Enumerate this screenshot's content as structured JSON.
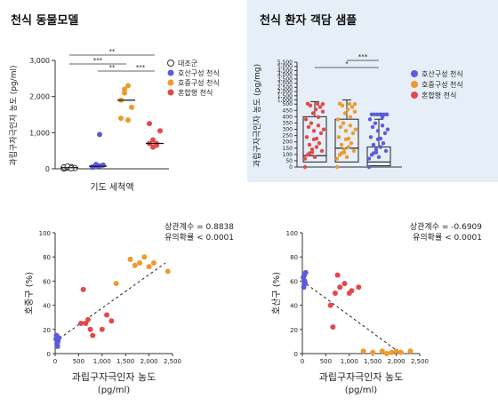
{
  "panels": {
    "animal_title": "천식 동물모델",
    "patient_title": "천식 환자 객담 샘플"
  },
  "chart_data": [
    {
      "id": "animal",
      "type": "scatter",
      "title": "천식 동물모델",
      "xlabel": "기도 세척액",
      "ylabel": "과립구자극인자 농도 (pg/ml)",
      "ylim": [
        0,
        3000
      ],
      "yticks": [
        "0",
        "1,000",
        "2,000",
        "3,000"
      ],
      "significance": [
        "**",
        "***",
        "**",
        "***"
      ],
      "legend": [
        "대조군",
        "호산구성 천식",
        "호중구성 천식",
        "혼합형 천식"
      ],
      "colors": [
        "#ffffff",
        "#5b5bdc",
        "#ee9a2c",
        "#e24a4a"
      ],
      "series": [
        {
          "name": "대조군",
          "values": [
            10,
            30,
            50,
            20,
            40,
            60,
            15
          ],
          "mean": 30
        },
        {
          "name": "호산구성 천식",
          "values": [
            40,
            60,
            80,
            100,
            50,
            120,
            950
          ],
          "mean": 70
        },
        {
          "name": "호중구성 천식",
          "values": [
            1900,
            2100,
            2300,
            1700,
            1400,
            2200,
            1350
          ],
          "mean": 1900
        },
        {
          "name": "혼합형 천식",
          "values": [
            700,
            800,
            650,
            1050,
            1250,
            600,
            700
          ],
          "mean": 700
        }
      ]
    },
    {
      "id": "patient",
      "type": "box",
      "title": "천식 환자 객담 샘플",
      "ylabel": "과립구자극인자 농도 (pg/mg)",
      "ylim": [
        0,
        5500
      ],
      "yticks": [
        "0",
        "50",
        "100",
        "150",
        "200",
        "250",
        "300",
        "350",
        "400",
        "450",
        "500",
        "1,000",
        "1,500",
        "2,000",
        "2,500",
        "3,000",
        "3,500",
        "4,000",
        "4,500",
        "5,000",
        "5,500"
      ],
      "significance": [
        "*",
        "***"
      ],
      "legend": [
        "호산구성 천식",
        "호중구성 천식",
        "혼합형 천식"
      ],
      "colors": [
        "#5b5bdc",
        "#ee9a2c",
        "#e24a4a"
      ],
      "boxes": [
        {
          "name": "혼합형 천식",
          "q1": 40,
          "median": 90,
          "q3": 400,
          "whisker_high": 800
        },
        {
          "name": "호중구성 천식",
          "q1": 40,
          "median": 150,
          "q3": 380,
          "whisker_high": 1000
        },
        {
          "name": "호산구성 천식",
          "q1": 10,
          "median": 40,
          "q3": 160,
          "whisker_high": 380
        }
      ]
    },
    {
      "id": "corr-neutrophil",
      "type": "scatter",
      "xlabel": "과립구자극인자 농도",
      "xunit": "(pg/ml)",
      "ylabel": "호중구 (%)",
      "xlim": [
        0,
        2500
      ],
      "ylim": [
        0,
        100
      ],
      "xticks": [
        "0",
        "500",
        "1,000",
        "1,500",
        "2,000",
        "2,500"
      ],
      "yticks": [
        "0",
        "20",
        "40",
        "60",
        "80",
        "100"
      ],
      "stat1": "상관계수 = 0.8838",
      "stat2": "유의확률 < 0.0001",
      "trend": [
        [
          0,
          10
        ],
        [
          2350,
          75
        ]
      ],
      "points": [
        {
          "x": 20,
          "y": 12,
          "g": 0
        },
        {
          "x": 40,
          "y": 8,
          "g": 0
        },
        {
          "x": 30,
          "y": 15,
          "g": 0
        },
        {
          "x": 60,
          "y": 10,
          "g": 0
        },
        {
          "x": 50,
          "y": 6,
          "g": 0
        },
        {
          "x": 80,
          "y": 13,
          "g": 0
        },
        {
          "x": 550,
          "y": 25,
          "g": 2
        },
        {
          "x": 600,
          "y": 53,
          "g": 2
        },
        {
          "x": 700,
          "y": 28,
          "g": 2
        },
        {
          "x": 750,
          "y": 20,
          "g": 2
        },
        {
          "x": 800,
          "y": 15,
          "g": 2
        },
        {
          "x": 650,
          "y": 25,
          "g": 2
        },
        {
          "x": 1100,
          "y": 32,
          "g": 2
        },
        {
          "x": 1200,
          "y": 27,
          "g": 2
        },
        {
          "x": 1000,
          "y": 20,
          "g": 2
        },
        {
          "x": 1300,
          "y": 58,
          "g": 1
        },
        {
          "x": 1600,
          "y": 78,
          "g": 1
        },
        {
          "x": 1700,
          "y": 73,
          "g": 1
        },
        {
          "x": 1800,
          "y": 75,
          "g": 1
        },
        {
          "x": 1900,
          "y": 80,
          "g": 1
        },
        {
          "x": 2000,
          "y": 72,
          "g": 1
        },
        {
          "x": 2100,
          "y": 75,
          "g": 1
        },
        {
          "x": 2400,
          "y": 68,
          "g": 1
        }
      ]
    },
    {
      "id": "corr-eosinophil",
      "type": "scatter",
      "xlabel": "과립구자극인자 농도",
      "xunit": "(pg/ml)",
      "ylabel": "호산구 (%)",
      "xlim": [
        0,
        2500
      ],
      "ylim": [
        0,
        100
      ],
      "xticks": [
        "0",
        "500",
        "1,000",
        "1,500",
        "2,000",
        "2,500"
      ],
      "yticks": [
        "0",
        "20",
        "40",
        "60",
        "80",
        "100"
      ],
      "stat1": "상관계수 = -0.6909",
      "stat2": "유의확률 < 0.0001",
      "trend": [
        [
          0,
          60
        ],
        [
          2100,
          0
        ]
      ],
      "points": [
        {
          "x": 20,
          "y": 63,
          "g": 0
        },
        {
          "x": 40,
          "y": 65,
          "g": 0
        },
        {
          "x": 60,
          "y": 58,
          "g": 0
        },
        {
          "x": 30,
          "y": 55,
          "g": 0
        },
        {
          "x": 70,
          "y": 67,
          "g": 0
        },
        {
          "x": 50,
          "y": 60,
          "g": 0
        },
        {
          "x": 600,
          "y": 40,
          "g": 2
        },
        {
          "x": 700,
          "y": 50,
          "g": 2
        },
        {
          "x": 750,
          "y": 65,
          "g": 2
        },
        {
          "x": 800,
          "y": 55,
          "g": 2
        },
        {
          "x": 650,
          "y": 22,
          "g": 2
        },
        {
          "x": 1000,
          "y": 50,
          "g": 2
        },
        {
          "x": 1050,
          "y": 52,
          "g": 2
        },
        {
          "x": 1200,
          "y": 55,
          "g": 2
        },
        {
          "x": 900,
          "y": 58,
          "g": 2
        },
        {
          "x": 1300,
          "y": 2,
          "g": 1
        },
        {
          "x": 1500,
          "y": 1,
          "g": 1
        },
        {
          "x": 1700,
          "y": 2,
          "g": 1
        },
        {
          "x": 1800,
          "y": 0,
          "g": 1
        },
        {
          "x": 1900,
          "y": 1,
          "g": 1
        },
        {
          "x": 2000,
          "y": 2,
          "g": 1
        },
        {
          "x": 2100,
          "y": 1,
          "g": 1
        },
        {
          "x": 2300,
          "y": 2,
          "g": 1
        }
      ]
    }
  ]
}
